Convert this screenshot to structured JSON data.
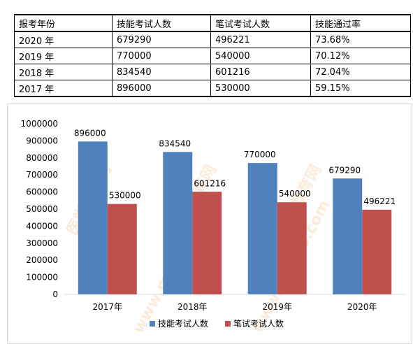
{
  "table": {
    "headers": [
      "报考年份",
      "技能考试人数",
      "笔试考试人数",
      "技能通过率"
    ],
    "rows": [
      [
        "2020 年",
        "679290",
        "496221",
        "73.68%"
      ],
      [
        "2019 年",
        "770000",
        "540000",
        "70.12%"
      ],
      [
        "2018 年",
        "834540",
        "601216",
        "72.04%"
      ],
      [
        "2017 年",
        "896000",
        "530000",
        "59.15%"
      ]
    ]
  },
  "watermark": {
    "text": "医学教育网",
    "url": "www.med66.com",
    "color": "#f5c896"
  },
  "chart_data": {
    "type": "bar",
    "categories": [
      "2017年",
      "2018年",
      "2019年",
      "2020年"
    ],
    "series": [
      {
        "name": "技能考试人数",
        "values": [
          896000,
          834540,
          770000,
          679290
        ],
        "color": "#4f81bd"
      },
      {
        "name": "笔试考试人数",
        "values": [
          530000,
          601216,
          540000,
          496221
        ],
        "color": "#c0504d"
      }
    ],
    "ylim": [
      0,
      1000000
    ],
    "yticks": [
      "0",
      "100000",
      "200000",
      "300000",
      "400000",
      "500000",
      "600000",
      "700000",
      "800000",
      "900000",
      "1000000"
    ],
    "title": "",
    "xlabel": "",
    "ylabel": "",
    "grid": false,
    "legend_position": "bottom"
  }
}
